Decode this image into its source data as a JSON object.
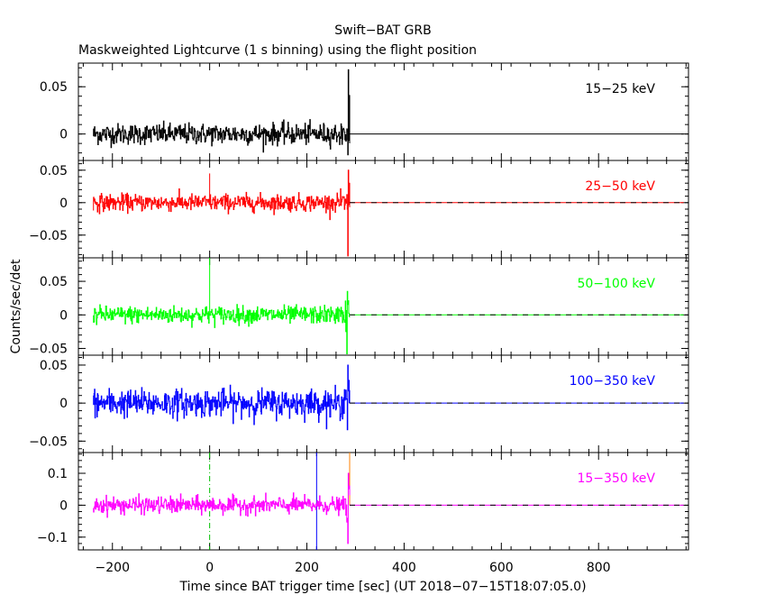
{
  "chart_data": {
    "type": "line",
    "title": "Swift−BAT GRB",
    "subtitle": "Maskweighted Lightcurve (1 s binning) using the flight position",
    "xlabel": "Time since BAT trigger time [sec] (UT 2018−07−15T18:07:05.0)",
    "ylabel": "Counts/sec/det",
    "xlim": [
      -270,
      985
    ],
    "x_ticks": [
      -200,
      0,
      200,
      400,
      600,
      800
    ],
    "x_tick_labels": [
      "−200",
      "0",
      "200",
      "400",
      "600",
      "800"
    ],
    "data_x_range": [
      -240,
      975
    ],
    "signal_end": 288,
    "panels": [
      {
        "name": "15−25 keV",
        "color": "#000000",
        "ylim": [
          -0.028,
          0.075
        ],
        "y_ticks": [
          0,
          0.05
        ],
        "y_tick_labels": [
          "0",
          "0.05"
        ],
        "noise_std": 0.0055,
        "burst": {
          "time": 285,
          "peak": 0.068,
          "trough": -0.022
        },
        "spike_lines": []
      },
      {
        "name": "25−50 keV",
        "color": "#ff0000",
        "ylim": [
          -0.085,
          0.065
        ],
        "y_ticks": [
          -0.05,
          0,
          0.05
        ],
        "y_tick_labels": [
          "−0.05",
          "0",
          "0.05"
        ],
        "noise_std": 0.0065,
        "burst": {
          "time": 285,
          "peak": 0.05,
          "trough": -0.082
        },
        "spike_lines": [
          {
            "x": 0,
            "y_top": 0.045,
            "y_bottom": 0,
            "color": "#ff0000"
          }
        ]
      },
      {
        "name": "50−100 keV",
        "color": "#00ff00",
        "ylim": [
          -0.06,
          0.085
        ],
        "y_ticks": [
          -0.05,
          0,
          0.05
        ],
        "y_tick_labels": [
          "−0.05",
          "0",
          "0.05"
        ],
        "noise_std": 0.0065,
        "burst": {
          "time": 283,
          "peak": 0.035,
          "trough": -0.058
        },
        "spike_lines": [
          {
            "x": 0,
            "y_top": 0.085,
            "y_bottom": 0,
            "color": "#00ff00"
          }
        ]
      },
      {
        "name": "100−350 keV",
        "color": "#0000ff",
        "ylim": [
          -0.065,
          0.063
        ],
        "y_ticks": [
          -0.05,
          0,
          0.05
        ],
        "y_tick_labels": [
          "−0.05",
          "0",
          "0.05"
        ],
        "noise_std": 0.009,
        "burst": {
          "time": 284,
          "peak": 0.05,
          "trough": -0.035
        },
        "spike_lines": []
      },
      {
        "name": "15−350 keV",
        "color": "#ff00ff",
        "ylim": [
          -0.14,
          0.165
        ],
        "y_ticks": [
          -0.1,
          0,
          0.1
        ],
        "y_tick_labels": [
          "−0.1",
          "0",
          "0.1"
        ],
        "noise_std": 0.013,
        "burst": {
          "time": 285,
          "peak": 0.1,
          "trough": -0.12
        },
        "spike_lines": [
          {
            "x": 0,
            "y_top": 0.165,
            "y_bottom": -0.14,
            "color": "#00c000",
            "dashed": true
          },
          {
            "x": 220,
            "y_top": 0.165,
            "y_bottom": -0.14,
            "color": "#0000ff"
          },
          {
            "x": 288,
            "y_top": 0.165,
            "y_bottom": 0.0,
            "color": "#ff8000"
          }
        ]
      }
    ]
  }
}
